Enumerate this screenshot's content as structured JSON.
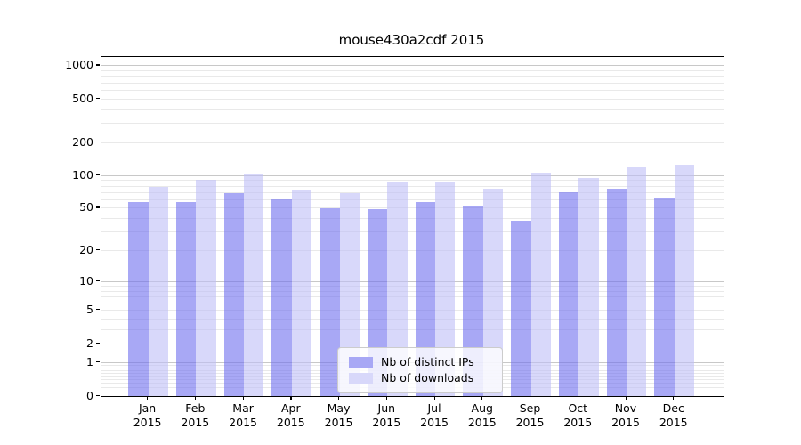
{
  "chart_data": {
    "type": "bar",
    "title": "mouse430a2cdf 2015",
    "categories": [
      "Jan",
      "Feb",
      "Mar",
      "Apr",
      "May",
      "Jun",
      "Jul",
      "Aug",
      "Sep",
      "Oct",
      "Nov",
      "Dec"
    ],
    "x_year_label": "2015",
    "series": [
      {
        "name": "Nb of distinct IPs",
        "values": [
          57,
          57,
          69,
          60,
          50,
          49,
          57,
          53,
          38,
          70,
          75,
          61
        ]
      },
      {
        "name": "Nb of downloads",
        "values": [
          79,
          91,
          102,
          74,
          69,
          87,
          88,
          76,
          107,
          94,
          118,
          126
        ]
      }
    ],
    "yscale": "log10(1+x)",
    "ylim": [
      0,
      1070
    ],
    "ytick_values": [
      1000,
      500,
      200,
      100,
      50,
      20,
      10,
      5,
      2,
      1,
      0
    ],
    "ytick_labels": [
      "1000",
      "500",
      "200",
      "100",
      "50",
      "20",
      "10",
      "5",
      "2",
      "1",
      "0"
    ],
    "grid": {
      "major": [
        1,
        10,
        100,
        1000
      ],
      "minor": [
        0.2,
        0.3,
        0.4,
        0.5,
        0.6,
        0.7,
        0.8,
        0.9,
        2,
        3,
        4,
        6,
        7,
        8,
        9,
        5,
        20,
        30,
        40,
        60,
        70,
        80,
        90,
        50,
        200,
        300,
        400,
        600,
        700,
        800,
        900,
        500
      ]
    },
    "legend_position": "lower center",
    "colors": {
      "series_ips": "rgba(110,110,238,0.6)",
      "series_downloads": "rgba(190,190,247,0.6)",
      "series_ips_solid": "#a8a8f5",
      "series_downloads_solid": "#d8d8fa",
      "grid_major": "#c8c8c8",
      "grid_minor": "#e9e9e9",
      "axis": "#000000"
    }
  }
}
